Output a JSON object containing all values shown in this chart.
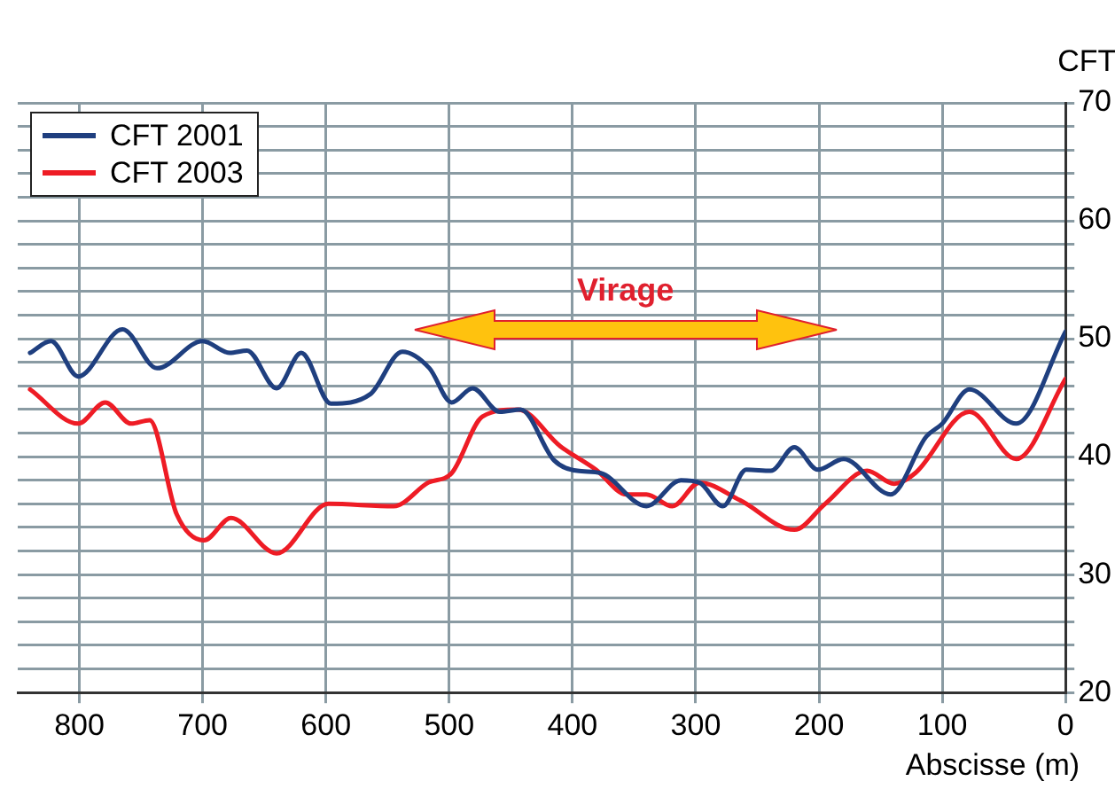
{
  "chart_data": {
    "type": "line",
    "xlabel": "Abscisse (m)",
    "ylabel": "CFT",
    "xlim": [
      850,
      0
    ],
    "xticks": [
      800,
      700,
      600,
      500,
      400,
      300,
      200,
      100,
      0
    ],
    "ylim": [
      20,
      70
    ],
    "yticks": [
      20,
      {
        "value": 22,
        "label": null
      },
      {
        "value": 24,
        "label": null
      },
      {
        "value": 26,
        "label": null
      },
      {
        "value": 28,
        "label": null
      },
      30,
      {
        "value": 32,
        "label": null
      },
      {
        "value": 34,
        "label": null
      },
      {
        "value": 36,
        "label": null
      },
      {
        "value": 38,
        "label": null
      },
      40,
      {
        "value": 42,
        "label": null
      },
      {
        "value": 44,
        "label": null
      },
      {
        "value": 46,
        "label": null
      },
      {
        "value": 48,
        "label": null
      },
      50,
      {
        "value": 52,
        "label": null
      },
      {
        "value": 54,
        "label": null
      },
      {
        "value": 56,
        "label": null
      },
      {
        "value": 58,
        "label": null
      },
      60,
      {
        "value": 62,
        "label": null
      },
      {
        "value": 64,
        "label": null
      },
      {
        "value": 66,
        "label": null
      },
      {
        "value": 68,
        "label": null
      },
      70
    ],
    "grid": true,
    "legend": "top left",
    "marker": "none",
    "line_style": "solid",
    "annotations": [
      "Virage"
    ],
    "series": [
      {
        "name": "CFT 2001",
        "color": "#1f3f7f",
        "x": [
          840,
          823,
          801,
          765,
          737,
          700,
          678,
          664,
          640,
          620,
          596,
          564,
          538,
          516,
          498,
          481,
          459,
          442,
          415,
          396,
          377,
          340,
          312,
          297,
          278,
          259,
          239,
          220,
          201,
          180,
          142,
          113,
          100,
          78,
          40,
          0
        ],
        "values": [
          48.8,
          49.8,
          46.8,
          50.8,
          47.5,
          49.8,
          48.8,
          49,
          45.8,
          48.8,
          44.5,
          45.3,
          48.9,
          47.5,
          44.6,
          45.8,
          43.8,
          44,
          39.7,
          38.8,
          38.6,
          35.8,
          38,
          37.8,
          35.8,
          38.9,
          38.8,
          40.8,
          38.9,
          39.8,
          36.8,
          41.7,
          42.8,
          45.7,
          42.8,
          50.6
        ]
      },
      {
        "name": "CFT 2003",
        "color": "#ee1c25",
        "x": [
          840,
          801,
          779,
          758,
          743,
          721,
          699,
          677,
          640,
          598,
          545,
          517,
          498,
          473,
          444,
          410,
          381,
          356,
          340,
          319,
          297,
          264,
          220,
          195,
          161,
          139,
          122,
          78,
          40,
          0
        ],
        "values": [
          45.7,
          42.8,
          44.6,
          42.8,
          43.1,
          35.1,
          32.9,
          34.8,
          31.8,
          36,
          35.8,
          37.8,
          38.6,
          43.4,
          44,
          40.9,
          38.9,
          36.8,
          36.8,
          35.8,
          37.8,
          36.3,
          33.8,
          36,
          38.8,
          37.7,
          38.6,
          43.8,
          39.8,
          46.6
        ]
      }
    ]
  }
}
